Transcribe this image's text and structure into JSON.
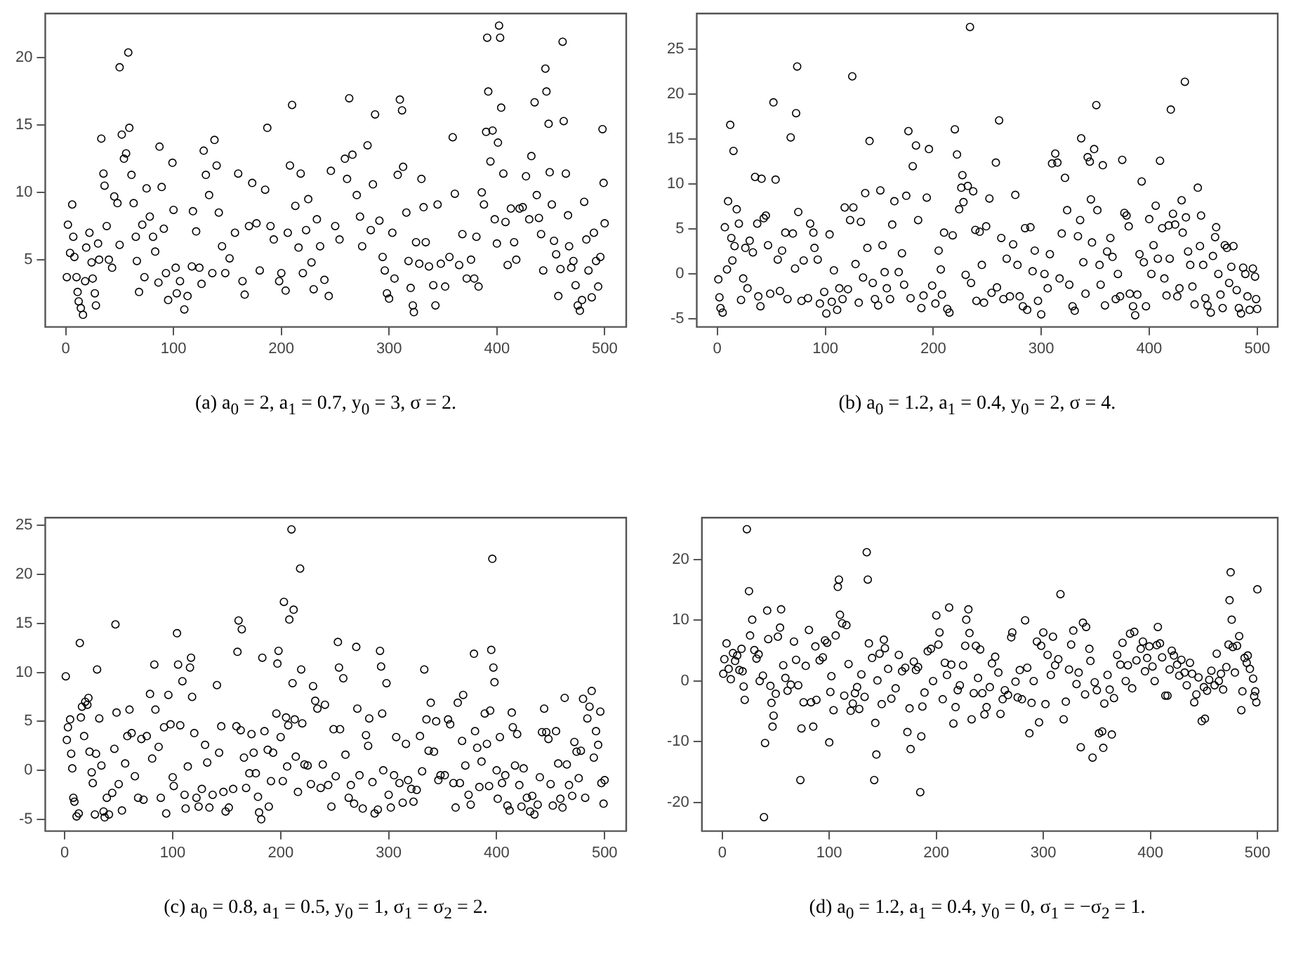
{
  "chart_data": [
    {
      "type": "scatter",
      "color": "#000000",
      "marker": "circle",
      "grid": false,
      "legend": false,
      "annotations": [
        "(a) a$_{0}$ = 2, a$_{1}$ = 0.7, y$_{0}$ = 3, σ = 2."
      ],
      "xlim": [
        -19,
        520
      ],
      "ylim": [
        0,
        23.3
      ],
      "xticks": [
        0,
        100,
        200,
        300,
        400,
        500
      ],
      "yticks": [
        5,
        10,
        15,
        20
      ],
      "x": [
        1,
        2,
        4,
        6,
        7,
        8,
        10,
        11,
        12,
        14,
        16,
        18,
        19,
        22,
        24,
        25,
        27,
        28,
        30,
        31,
        33,
        35,
        36,
        38,
        40,
        43,
        45,
        48,
        50,
        50,
        52,
        54,
        56,
        58,
        59,
        61,
        63,
        65,
        66,
        68,
        71,
        73,
        75,
        78,
        81,
        83,
        86,
        87,
        89,
        91,
        93,
        95,
        99,
        100,
        102,
        103,
        106,
        110,
        113,
        117,
        118,
        121,
        124,
        126,
        128,
        130,
        133,
        136,
        138,
        140,
        142,
        145,
        148,
        152,
        157,
        160,
        164,
        166,
        170,
        173,
        177,
        180,
        185,
        187,
        190,
        193,
        198,
        200,
        204,
        206,
        208,
        210,
        213,
        216,
        218,
        220,
        223,
        225,
        228,
        230,
        233,
        236,
        240,
        244,
        246,
        250,
        254,
        259,
        261,
        263,
        266,
        270,
        273,
        275,
        280,
        283,
        285,
        287,
        291,
        294,
        296,
        298,
        300,
        303,
        305,
        308,
        310,
        312,
        313,
        316,
        318,
        320,
        322,
        323,
        325,
        328,
        330,
        332,
        334,
        337,
        341,
        343,
        345,
        348,
        352,
        356,
        359,
        361,
        365,
        368,
        372,
        376,
        379,
        381,
        383,
        386,
        388,
        390,
        391,
        392,
        394,
        396,
        398,
        400,
        401,
        402,
        403,
        404,
        406,
        408,
        410,
        413,
        416,
        418,
        421,
        424,
        427,
        430,
        432,
        435,
        437,
        439,
        441,
        443,
        445,
        446,
        448,
        449,
        451,
        453,
        455,
        457,
        459,
        461,
        462,
        464,
        466,
        467,
        469,
        471,
        473,
        475,
        477,
        479,
        481,
        483,
        485,
        488,
        490,
        492,
        494,
        496,
        498,
        499,
        500
      ],
      "values": [
        3.7,
        7.6,
        5.5,
        9.1,
        6.7,
        5.2,
        3.7,
        2.6,
        1.9,
        1.4,
        0.9,
        3.4,
        5.9,
        7.0,
        4.8,
        3.6,
        2.5,
        1.6,
        6.2,
        5.0,
        14.0,
        11.4,
        10.5,
        7.5,
        5.0,
        4.4,
        9.7,
        9.2,
        6.1,
        19.3,
        14.3,
        12.5,
        12.9,
        20.4,
        14.8,
        11.3,
        9.2,
        6.7,
        4.9,
        2.6,
        7.6,
        3.7,
        10.3,
        8.2,
        6.7,
        5.6,
        3.3,
        13.4,
        10.4,
        7.3,
        4.0,
        2.0,
        12.2,
        8.7,
        4.4,
        2.5,
        3.4,
        1.3,
        2.3,
        4.5,
        8.6,
        7.1,
        4.4,
        3.2,
        13.1,
        11.3,
        9.8,
        4.0,
        13.9,
        12.0,
        8.5,
        6.0,
        4.0,
        5.1,
        7.0,
        11.4,
        3.4,
        2.4,
        7.5,
        10.7,
        7.7,
        4.2,
        10.2,
        14.8,
        7.5,
        6.5,
        3.4,
        4.0,
        2.7,
        7.0,
        12.0,
        16.5,
        9.0,
        5.9,
        11.4,
        4.0,
        7.2,
        9.5,
        4.8,
        2.8,
        8.0,
        6.0,
        3.5,
        2.3,
        11.6,
        7.5,
        6.5,
        12.5,
        11.0,
        17.0,
        12.8,
        9.8,
        8.2,
        6.0,
        13.5,
        7.2,
        10.6,
        15.8,
        7.9,
        5.2,
        4.2,
        2.5,
        2.1,
        7.0,
        3.6,
        11.3,
        16.9,
        16.1,
        11.9,
        8.5,
        4.9,
        2.9,
        1.6,
        1.1,
        6.3,
        4.7,
        11.0,
        8.9,
        6.3,
        4.5,
        3.1,
        1.6,
        9.1,
        4.7,
        3.0,
        5.2,
        14.1,
        9.9,
        4.6,
        6.9,
        3.6,
        5.0,
        3.6,
        6.7,
        3.0,
        10.0,
        9.1,
        14.5,
        21.5,
        17.5,
        12.3,
        14.6,
        8.0,
        6.2,
        13.7,
        22.4,
        21.5,
        16.3,
        11.4,
        7.8,
        4.6,
        8.8,
        6.3,
        5.0,
        8.8,
        8.9,
        11.2,
        8.0,
        12.7,
        16.7,
        9.8,
        8.1,
        6.9,
        4.2,
        19.2,
        17.5,
        15.1,
        11.5,
        9.1,
        6.4,
        5.4,
        2.3,
        4.3,
        21.2,
        15.3,
        11.4,
        8.3,
        6.0,
        4.4,
        4.9,
        3.1,
        1.6,
        1.2,
        2.0,
        9.3,
        6.5,
        4.2,
        2.2,
        7.0,
        4.9,
        3.0,
        5.2,
        14.7,
        10.7,
        7.7
      ]
    },
    {
      "type": "scatter",
      "color": "#000000",
      "marker": "circle",
      "grid": false,
      "legend": false,
      "annotations": [
        "(b) a$_{0}$ = 1.2, a$_{1}$ = 0.4, y$_{0}$ = 2, σ = 4."
      ],
      "xlim": [
        -19,
        519
      ],
      "ylim": [
        -5.9,
        29
      ],
      "xticks": [
        0,
        100,
        200,
        300,
        400,
        500
      ],
      "yticks": [
        -5,
        0,
        5,
        10,
        15,
        20,
        25
      ],
      "x": [
        1,
        2,
        3,
        5,
        7,
        9,
        10,
        12,
        13,
        14,
        15,
        16,
        18,
        20,
        22,
        24,
        26,
        28,
        30,
        33,
        35,
        37,
        38,
        40,
        41,
        43,
        45,
        47,
        49,
        52,
        54,
        56,
        58,
        60,
        63,
        65,
        68,
        70,
        72,
        73,
        74,
        75,
        78,
        80,
        84,
        86,
        89,
        90,
        93,
        95,
        99,
        101,
        104,
        106,
        108,
        111,
        113,
        116,
        118,
        121,
        123,
        125,
        126,
        128,
        131,
        133,
        135,
        137,
        139,
        141,
        144,
        146,
        149,
        151,
        153,
        155,
        157,
        160,
        162,
        164,
        168,
        171,
        173,
        175,
        177,
        179,
        181,
        184,
        186,
        189,
        191,
        194,
        196,
        199,
        202,
        205,
        207,
        208,
        210,
        213,
        215,
        218,
        220,
        222,
        224,
        226,
        227,
        228,
        230,
        232,
        234,
        235,
        237,
        239,
        240,
        243,
        245,
        247,
        249,
        252,
        254,
        258,
        259,
        261,
        263,
        265,
        268,
        271,
        274,
        276,
        278,
        280,
        283,
        285,
        287,
        290,
        292,
        294,
        297,
        300,
        303,
        306,
        308,
        310,
        313,
        315,
        317,
        319,
        322,
        324,
        326,
        329,
        331,
        334,
        336,
        337,
        339,
        341,
        343,
        345,
        346,
        347,
        349,
        351,
        352,
        354,
        355,
        357,
        359,
        361,
        364,
        366,
        369,
        371,
        373,
        375,
        377,
        379,
        381,
        382,
        385,
        387,
        389,
        391,
        393,
        395,
        397,
        400,
        402,
        404,
        406,
        408,
        410,
        412,
        414,
        416,
        418,
        419,
        420,
        422,
        424,
        426,
        428,
        430,
        431,
        433,
        434,
        436,
        438,
        440,
        442,
        445,
        447,
        448,
        450,
        452,
        454,
        457,
        459,
        461,
        462,
        464,
        466,
        468,
        470,
        472,
        474,
        476,
        478,
        481,
        483,
        485,
        487,
        489,
        491,
        493,
        496,
        498,
        499,
        500
      ],
      "values": [
        -0.6,
        -2.6,
        -3.8,
        -4.3,
        5.2,
        0.5,
        8.1,
        16.6,
        4.0,
        1.5,
        13.7,
        3.1,
        7.2,
        5.6,
        -2.9,
        -0.5,
        2.9,
        -1.6,
        3.7,
        2.4,
        10.8,
        5.6,
        -2.5,
        -3.6,
        10.6,
        6.2,
        6.5,
        3.2,
        -2.2,
        19.1,
        10.5,
        1.6,
        -1.9,
        2.6,
        4.6,
        -2.8,
        15.2,
        4.5,
        0.6,
        17.9,
        23.1,
        6.9,
        -3.0,
        1.5,
        -2.7,
        5.6,
        4.6,
        2.9,
        1.6,
        -3.3,
        -2.0,
        -4.4,
        4.4,
        -3.1,
        0.4,
        -4.0,
        -1.6,
        -2.8,
        7.4,
        -1.7,
        6.0,
        22.0,
        7.4,
        1.1,
        -3.2,
        5.8,
        -0.4,
        9.0,
        2.9,
        14.8,
        -1.0,
        -2.8,
        -3.5,
        9.3,
        3.2,
        0.2,
        -1.6,
        -2.8,
        5.5,
        8.1,
        0.2,
        2.3,
        -1.2,
        8.7,
        15.9,
        -2.7,
        12.0,
        14.3,
        6.0,
        -3.8,
        -2.4,
        8.5,
        13.9,
        -1.3,
        -3.3,
        2.6,
        0.5,
        -2.3,
        4.6,
        -3.9,
        -4.3,
        4.3,
        16.1,
        13.3,
        7.2,
        9.6,
        11.0,
        8.0,
        -0.1,
        9.8,
        27.5,
        -1.0,
        9.2,
        4.9,
        -3.0,
        4.7,
        1.0,
        -3.2,
        5.3,
        8.4,
        -2.1,
        12.4,
        -1.5,
        17.1,
        4.0,
        -2.8,
        1.7,
        -2.5,
        3.3,
        8.8,
        1.0,
        -2.5,
        -3.6,
        5.1,
        -4.0,
        5.2,
        0.3,
        2.6,
        -3.0,
        -4.5,
        0.0,
        -1.6,
        2.2,
        12.3,
        13.4,
        12.4,
        -0.5,
        4.5,
        10.7,
        7.1,
        -1.2,
        -3.6,
        -4.1,
        4.2,
        6.0,
        15.1,
        1.3,
        -2.2,
        13.0,
        12.5,
        8.3,
        3.5,
        13.9,
        18.8,
        7.1,
        1.0,
        -1.2,
        12.1,
        -3.5,
        2.5,
        4.0,
        1.9,
        -2.8,
        0.0,
        -2.5,
        12.7,
        6.8,
        6.5,
        5.3,
        -2.2,
        -3.6,
        -4.6,
        -2.3,
        2.2,
        10.3,
        1.3,
        -3.6,
        6.1,
        0.0,
        3.2,
        7.6,
        1.7,
        12.6,
        5.1,
        -0.5,
        -2.4,
        5.4,
        1.7,
        18.3,
        6.7,
        5.5,
        -2.5,
        -1.6,
        8.2,
        4.6,
        21.4,
        6.3,
        2.5,
        1.0,
        -1.4,
        -3.4,
        9.6,
        3.1,
        6.5,
        1.0,
        -2.7,
        -3.5,
        -4.3,
        2.0,
        4.1,
        5.2,
        0.0,
        -2.3,
        -3.8,
        3.2,
        2.9,
        -1.0,
        0.8,
        3.1,
        -1.8,
        -3.8,
        -4.4,
        0.7,
        0.0,
        -2.5,
        -4.0,
        0.6,
        -0.3,
        -2.8,
        -3.9
      ]
    },
    {
      "type": "scatter",
      "color": "#000000",
      "marker": "circle",
      "grid": false,
      "legend": false,
      "annotations": [
        "(c) a$_{0}$ = 0.8, a$_{1}$ = 0.5, y$_{0}$ = 1, σ$_{1}$ = σ$_{2}$ = 2."
      ],
      "xlim": [
        -18,
        520
      ],
      "ylim": [
        -6.2,
        25.8
      ],
      "xticks": [
        0,
        100,
        200,
        300,
        400,
        500
      ],
      "yticks": [
        -5,
        0,
        5,
        10,
        15,
        20,
        25
      ],
      "x": [
        1,
        2,
        3,
        5,
        6,
        7,
        8,
        9,
        11,
        13,
        14,
        15,
        16,
        18,
        19,
        21,
        22,
        23,
        25,
        26,
        28,
        29,
        30,
        32,
        34,
        36,
        37,
        39,
        41,
        44,
        46,
        47,
        48,
        50,
        53,
        56,
        58,
        60,
        62,
        65,
        68,
        71,
        73,
        76,
        79,
        81,
        83,
        84,
        87,
        89,
        92,
        94,
        96,
        98,
        100,
        101,
        104,
        105,
        107,
        109,
        111,
        112,
        114,
        116,
        117,
        118,
        120,
        122,
        124,
        127,
        130,
        132,
        134,
        137,
        141,
        143,
        145,
        147,
        149,
        152,
        156,
        159,
        160,
        161,
        163,
        164,
        166,
        168,
        171,
        173,
        175,
        177,
        179,
        180,
        182,
        183,
        185,
        188,
        189,
        191,
        193,
        196,
        197,
        198,
        200,
        202,
        203,
        205,
        206,
        207,
        208,
        210,
        211,
        212,
        213,
        214,
        216,
        218,
        219,
        220,
        222,
        225,
        228,
        230,
        232,
        234,
        237,
        239,
        241,
        244,
        247,
        249,
        251,
        253,
        254,
        255,
        258,
        260,
        263,
        265,
        268,
        270,
        271,
        273,
        276,
        279,
        281,
        282,
        285,
        287,
        290,
        292,
        293,
        294,
        295,
        298,
        300,
        302,
        305,
        307,
        310,
        313,
        316,
        318,
        321,
        323,
        326,
        329,
        331,
        333,
        335,
        337,
        339,
        342,
        344,
        346,
        348,
        352,
        355,
        357,
        360,
        362,
        364,
        366,
        368,
        369,
        371,
        374,
        376,
        379,
        380,
        382,
        384,
        386,
        389,
        391,
        393,
        394,
        395,
        396,
        397,
        398,
        400,
        401,
        403,
        405,
        408,
        410,
        412,
        414,
        415,
        417,
        419,
        421,
        423,
        425,
        428,
        431,
        433,
        435,
        438,
        440,
        442,
        444,
        446,
        448,
        450,
        452,
        455,
        457,
        459,
        461,
        463,
        465,
        467,
        470,
        472,
        474,
        476,
        478,
        480,
        482,
        484,
        486,
        488,
        490,
        492,
        494,
        496,
        497,
        499,
        500
      ],
      "values": [
        9.6,
        3.1,
        4.4,
        5.2,
        1.7,
        0.2,
        -2.8,
        -3.2,
        -4.7,
        -4.4,
        13.0,
        5.4,
        6.5,
        3.5,
        7.0,
        6.7,
        7.4,
        1.9,
        -0.2,
        -1.3,
        -4.5,
        1.7,
        10.3,
        5.3,
        0.5,
        -4.2,
        -4.8,
        -2.8,
        -4.5,
        -2.3,
        2.2,
        14.9,
        5.9,
        -1.4,
        -4.1,
        0.7,
        3.5,
        6.2,
        3.8,
        -0.6,
        -2.8,
        3.2,
        -3.0,
        3.5,
        7.8,
        1.2,
        10.8,
        6.2,
        2.4,
        -2.8,
        4.4,
        -4.4,
        7.7,
        4.7,
        -0.7,
        -1.6,
        14.0,
        10.8,
        4.6,
        9.1,
        -2.5,
        -3.9,
        0.4,
        10.5,
        11.5,
        7.5,
        3.8,
        -2.8,
        -3.7,
        -1.9,
        2.6,
        0.8,
        -3.8,
        -2.5,
        8.7,
        1.8,
        4.5,
        -2.2,
        -4.2,
        -3.8,
        -1.9,
        4.5,
        12.1,
        15.3,
        4.1,
        14.4,
        1.3,
        -1.8,
        -0.3,
        3.7,
        1.8,
        -0.3,
        -2.7,
        -4.3,
        -5.0,
        11.5,
        4.0,
        2.1,
        -3.7,
        -1.1,
        1.8,
        5.8,
        10.9,
        12.2,
        3.4,
        -1.1,
        17.2,
        5.4,
        0.4,
        4.6,
        15.4,
        24.6,
        8.9,
        16.4,
        5.2,
        1.4,
        -2.2,
        20.6,
        10.3,
        4.8,
        0.6,
        0.5,
        -1.4,
        8.6,
        7.1,
        6.3,
        -1.8,
        0.6,
        6.7,
        -1.5,
        -3.7,
        4.2,
        -0.6,
        13.1,
        10.5,
        4.2,
        9.4,
        1.6,
        -2.8,
        -1.5,
        -3.4,
        12.6,
        6.3,
        -0.5,
        -3.9,
        3.6,
        2.5,
        5.3,
        -1.2,
        -4.4,
        -4.0,
        12.2,
        10.6,
        5.8,
        0.0,
        8.9,
        -2.5,
        -3.8,
        -0.5,
        3.4,
        -1.3,
        -3.3,
        2.7,
        -1.0,
        -1.9,
        -3.2,
        -2.0,
        3.5,
        -0.1,
        10.3,
        5.2,
        2.0,
        6.9,
        1.9,
        5.0,
        -1.0,
        -0.5,
        -0.5,
        5.2,
        4.7,
        -1.3,
        -3.8,
        6.9,
        -1.3,
        3.0,
        7.7,
        0.5,
        -2.5,
        -3.5,
        11.9,
        4.0,
        2.3,
        -1.7,
        0.9,
        5.8,
        2.7,
        -1.6,
        6.1,
        12.3,
        21.6,
        10.5,
        9.0,
        0.0,
        -2.9,
        3.4,
        -1.3,
        -0.5,
        -3.6,
        -4.1,
        5.9,
        4.4,
        0.5,
        3.7,
        -1.5,
        -3.7,
        0.2,
        -2.8,
        -4.2,
        -2.6,
        -4.5,
        -3.5,
        -0.7,
        3.9,
        6.3,
        3.9,
        3.2,
        -1.4,
        -3.6,
        4.0,
        0.7,
        -2.9,
        -3.8,
        7.4,
        0.6,
        -1.5,
        -2.6,
        2.9,
        1.9,
        -0.8,
        2.0,
        7.3,
        -2.8,
        5.3,
        6.5,
        8.1,
        1.3,
        4.0,
        2.6,
        6.0,
        -1.3,
        -3.4,
        -1.0
      ]
    },
    {
      "type": "scatter",
      "color": "#000000",
      "marker": "circle",
      "grid": false,
      "legend": false,
      "annotations": [
        "(d) a$_{0}$ = 1.2, a$_{1}$ = 0.4, y$_{0}$ = 0, σ$_{1}$ = −σ$_{2}$ = 1."
      ],
      "xlim": [
        -19,
        519
      ],
      "ylim": [
        -24.7,
        26.9
      ],
      "xticks": [
        0,
        100,
        200,
        300,
        400,
        500
      ],
      "yticks": [
        -20,
        -10,
        0,
        10,
        20
      ],
      "x": [
        1,
        2,
        4,
        6,
        8,
        10,
        12,
        14,
        16,
        18,
        19,
        20,
        21,
        23,
        25,
        26,
        28,
        30,
        32,
        34,
        35,
        38,
        39,
        40,
        42,
        43,
        45,
        46,
        47,
        48,
        50,
        52,
        54,
        55,
        57,
        59,
        61,
        64,
        67,
        69,
        71,
        73,
        74,
        76,
        78,
        81,
        83,
        85,
        87,
        88,
        91,
        94,
        96,
        98,
        100,
        101,
        102,
        104,
        106,
        108,
        109,
        110,
        112,
        114,
        116,
        118,
        120,
        122,
        124,
        126,
        128,
        130,
        133,
        135,
        136,
        137,
        140,
        142,
        143,
        144,
        145,
        147,
        149,
        151,
        152,
        155,
        158,
        162,
        165,
        168,
        171,
        173,
        175,
        176,
        179,
        181,
        183,
        185,
        186,
        187,
        189,
        192,
        195,
        197,
        200,
        202,
        203,
        206,
        208,
        210,
        212,
        214,
        216,
        218,
        220,
        222,
        225,
        227,
        228,
        230,
        231,
        233,
        235,
        237,
        239,
        241,
        243,
        245,
        247,
        250,
        252,
        255,
        258,
        260,
        262,
        264,
        267,
        270,
        271,
        274,
        276,
        278,
        280,
        283,
        285,
        287,
        289,
        291,
        294,
        296,
        298,
        300,
        302,
        304,
        307,
        309,
        311,
        314,
        316,
        319,
        321,
        324,
        326,
        328,
        331,
        333,
        335,
        337,
        339,
        340,
        343,
        344,
        346,
        348,
        350,
        352,
        355,
        356,
        357,
        360,
        362,
        364,
        366,
        369,
        372,
        374,
        377,
        379,
        381,
        383,
        385,
        387,
        391,
        393,
        395,
        397,
        399,
        402,
        404,
        406,
        407,
        409,
        411,
        414,
        416,
        418,
        420,
        422,
        425,
        427,
        429,
        432,
        434,
        437,
        439,
        441,
        443,
        445,
        448,
        450,
        451,
        453,
        455,
        457,
        460,
        462,
        464,
        466,
        468,
        471,
        473,
        474,
        475,
        476,
        477,
        479,
        481,
        483,
        485,
        486,
        488,
        490,
        491,
        493,
        496,
        497,
        498,
        499,
        500
      ],
      "values": [
        1.2,
        3.6,
        6.2,
        2.0,
        0.3,
        4.6,
        3.3,
        4.2,
        1.8,
        5.3,
        1.6,
        -0.9,
        -3.1,
        25.0,
        14.8,
        7.5,
        10.1,
        5.1,
        3.7,
        4.4,
        0.0,
        0.9,
        -22.4,
        -10.2,
        11.6,
        6.9,
        -0.8,
        -3.6,
        -7.5,
        -5.7,
        -2.1,
        7.3,
        8.8,
        11.8,
        2.6,
        0.5,
        -1.6,
        -0.6,
        6.5,
        3.5,
        -0.7,
        -16.3,
        -7.8,
        -3.5,
        2.5,
        8.4,
        -3.5,
        -7.5,
        5.7,
        -3.1,
        3.4,
        3.9,
        6.7,
        6.3,
        -10.1,
        -1.8,
        0.8,
        -4.8,
        7.5,
        15.5,
        16.7,
        10.9,
        9.5,
        -2.4,
        9.2,
        2.8,
        -4.9,
        -3.7,
        -2.0,
        -1.0,
        -4.6,
        1.1,
        -2.6,
        21.2,
        16.7,
        6.2,
        3.8,
        -16.3,
        -6.9,
        -12.1,
        0.1,
        4.5,
        -3.8,
        6.8,
        5.4,
        2.0,
        -2.9,
        -1.2,
        4.3,
        1.6,
        2.2,
        -8.4,
        -4.5,
        -11.2,
        3.2,
        1.8,
        2.3,
        -18.3,
        -9.1,
        -4.2,
        -1.9,
        4.9,
        5.3,
        0.0,
        10.8,
        6.0,
        8.0,
        -3.0,
        3.0,
        1.0,
        12.1,
        2.7,
        -7.0,
        -4.3,
        -1.5,
        -0.7,
        2.6,
        5.8,
        10.1,
        11.8,
        7.9,
        -6.3,
        -2.0,
        5.8,
        0.5,
        5.2,
        -2.0,
        -5.5,
        -4.3,
        -1.0,
        2.9,
        4.0,
        1.4,
        -5.4,
        -3.0,
        -1.5,
        -2.3,
        7.2,
        8.0,
        -0.1,
        -2.7,
        1.8,
        -3.0,
        10.0,
        2.2,
        -8.6,
        -3.6,
        0.0,
        6.5,
        -6.8,
        5.8,
        8.0,
        -3.8,
        4.3,
        1.0,
        7.3,
        2.6,
        3.6,
        14.3,
        -6.3,
        -3.4,
        1.9,
        6.0,
        8.3,
        -0.5,
        1.4,
        -10.9,
        9.6,
        -2.2,
        8.9,
        5.3,
        3.3,
        -12.6,
        -0.2,
        -1.5,
        -8.6,
        -8.3,
        -11.0,
        -3.7,
        1.0,
        -1.4,
        -8.8,
        -2.8,
        4.3,
        2.7,
        6.3,
        0.0,
        2.6,
        7.8,
        -1.2,
        8.1,
        3.4,
        5.3,
        6.5,
        1.6,
        3.8,
        5.7,
        2.4,
        0.0,
        5.9,
        8.9,
        6.2,
        3.9,
        -2.4,
        -2.4,
        1.9,
        5.0,
        4.2,
        2.7,
        0.9,
        3.5,
        1.4,
        -0.7,
        3.0,
        1.2,
        -3.5,
        -2.2,
        0.6,
        -6.6,
        -1.0,
        -6.2,
        -1.6,
        0.2,
        1.7,
        -0.7,
        4.5,
        0.0,
        1.2,
        -1.4,
        2.3,
        6.0,
        13.3,
        17.9,
        10.1,
        5.6,
        1.4,
        5.8,
        7.4,
        -4.8,
        -1.7,
        3.8,
        3.0,
        4.2,
        2.0,
        0.4,
        -2.5,
        -1.7,
        -3.5,
        15.1
      ]
    }
  ]
}
